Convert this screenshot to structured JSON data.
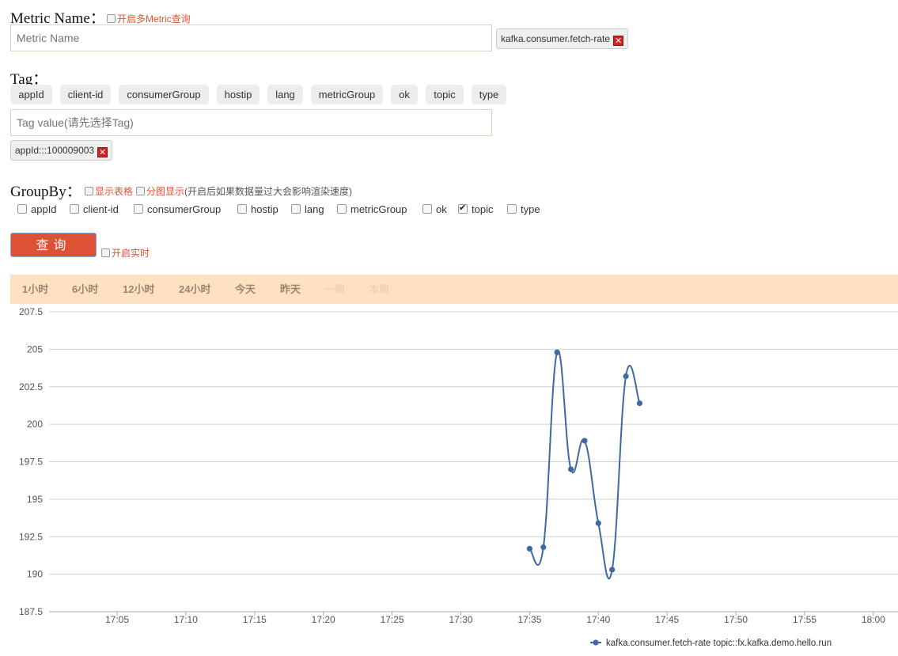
{
  "metric": {
    "title": "Metric Name：",
    "multi_label": "开启多Metric查询",
    "input_placeholder": "Metric Name",
    "selected_chip": "kafka.consumer.fetch-rate"
  },
  "tag": {
    "title": "Tag：",
    "pills": [
      "appId",
      "client-id",
      "consumerGroup",
      "hostip",
      "lang",
      "metricGroup",
      "ok",
      "topic",
      "type"
    ],
    "value_placeholder": "Tag value(请先选择Tag)",
    "selected_chip": "appId:::100009003"
  },
  "groupby": {
    "title": "GroupBy：",
    "show_table_label": "显示表格",
    "split_label": "分图显示",
    "split_note": "(开启后如果数据量过大会影响渲染速度)",
    "items": [
      {
        "label": "appId",
        "checked": false
      },
      {
        "label": "client-id",
        "checked": false
      },
      {
        "label": "consumerGroup",
        "checked": false
      },
      {
        "label": "hostip",
        "checked": false
      },
      {
        "label": "lang",
        "checked": false
      },
      {
        "label": "metricGroup",
        "checked": false
      },
      {
        "label": "ok",
        "checked": false
      },
      {
        "label": "topic",
        "checked": true
      },
      {
        "label": "type",
        "checked": false
      }
    ]
  },
  "actions": {
    "query_label": "查询",
    "realtime_label": "开启实时"
  },
  "time_ranges": [
    {
      "label": "1小时",
      "enabled": true
    },
    {
      "label": "6小时",
      "enabled": true
    },
    {
      "label": "12小时",
      "enabled": true
    },
    {
      "label": "24小时",
      "enabled": true
    },
    {
      "label": "今天",
      "enabled": true
    },
    {
      "label": "昨天",
      "enabled": true
    },
    {
      "label": "一周",
      "enabled": false
    },
    {
      "label": "本周",
      "enabled": false
    }
  ],
  "colors": {
    "accent": "#dd5235",
    "series": "#3e6aa0",
    "range_bar": "#fee1c1"
  },
  "chart_data": {
    "type": "line",
    "title": "",
    "xlabel": "",
    "ylabel": "",
    "ylim": [
      187.5,
      207.5
    ],
    "yticks": [
      "187.5",
      "190",
      "192.5",
      "195",
      "197.5",
      "200",
      "202.5",
      "205",
      "207.5"
    ],
    "xticks": [
      "17:05",
      "17:10",
      "17:15",
      "17:20",
      "17:25",
      "17:30",
      "17:35",
      "17:40",
      "17:45",
      "17:50",
      "17:55",
      "18:00"
    ],
    "grid": true,
    "legend_position": "bottom-right",
    "series": [
      {
        "name": "kafka.consumer.fetch-rate topic::fx.kafka.demo.hello.run",
        "x": [
          "17:35",
          "17:36",
          "17:37",
          "17:38",
          "17:39",
          "17:40",
          "17:41",
          "17:42",
          "17:43"
        ],
        "values": [
          191.7,
          191.8,
          204.8,
          197.0,
          198.9,
          193.4,
          190.3,
          203.2,
          201.4
        ]
      }
    ]
  }
}
